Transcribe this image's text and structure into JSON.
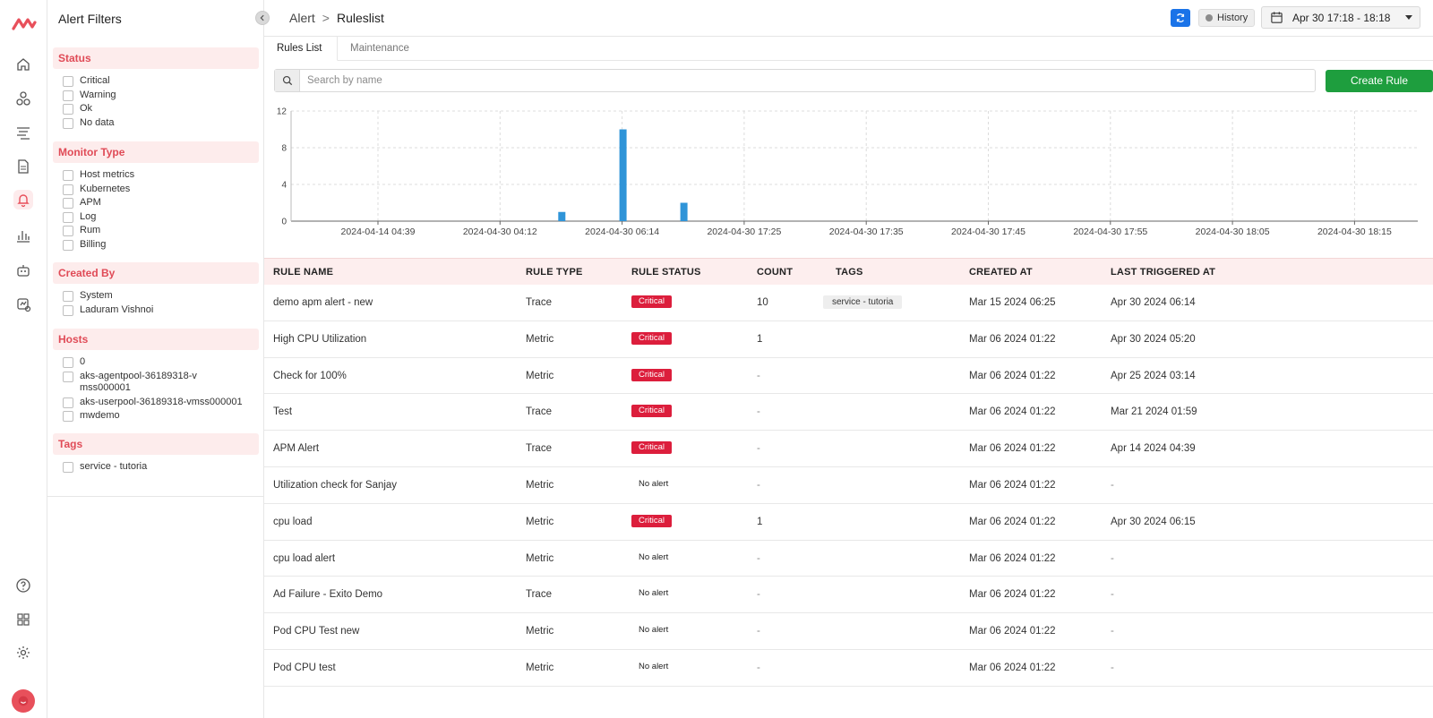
{
  "brand": {
    "accent": "#e8505b",
    "primary_blue": "#1a73e8",
    "success_green": "#1e9e3e",
    "critical_red": "#dc1e3c"
  },
  "rail": {
    "items": [
      {
        "icon": "home-icon"
      },
      {
        "icon": "infrastructure-icon"
      },
      {
        "icon": "logs-icon"
      },
      {
        "icon": "document-icon"
      },
      {
        "icon": "bell-icon",
        "active": true
      },
      {
        "icon": "bar-chart-icon"
      },
      {
        "icon": "robot-icon"
      },
      {
        "icon": "synthetics-icon"
      }
    ],
    "bottom": [
      {
        "icon": "help-icon"
      },
      {
        "icon": "apps-grid-icon"
      },
      {
        "icon": "settings-gear-icon"
      }
    ]
  },
  "filters": {
    "title": "Alert Filters",
    "groups": [
      {
        "label": "Status",
        "options": [
          "Critical",
          "Warning",
          "Ok",
          "No data"
        ]
      },
      {
        "label": "Monitor Type",
        "options": [
          "Host metrics",
          "Kubernetes",
          "APM",
          "Log",
          "Rum",
          "Billing"
        ]
      },
      {
        "label": "Created By",
        "options": [
          "System",
          "Laduram Vishnoi"
        ]
      },
      {
        "label": "Hosts",
        "options": [
          "0",
          "aks-agentpool-36189318-vmss000001",
          "aks-userpool-36189318-vmss000001",
          "mwdemo"
        ]
      },
      {
        "label": "Tags",
        "options": [
          "service - tutoria"
        ]
      }
    ]
  },
  "header": {
    "breadcrumb_root": "Alert",
    "breadcrumb_sep": ">",
    "breadcrumb_current": "Ruleslist",
    "history_label": "History",
    "date_range": "Apr 30 17:18 - 18:18"
  },
  "tabs": [
    "Rules List",
    "Maintenance"
  ],
  "search": {
    "placeholder": "Search by name"
  },
  "create_label": "Create Rule",
  "chart_data": {
    "type": "bar",
    "x_ticks": [
      "2024-04-14 04:39",
      "2024-04-30 04:12",
      "2024-04-30 06:14",
      "2024-04-30 17:25",
      "2024-04-30 17:35",
      "2024-04-30 17:45",
      "2024-04-30 17:55",
      "2024-04-30 18:05",
      "2024-04-30 18:15"
    ],
    "y_ticks": [
      0,
      4,
      8,
      12
    ],
    "ylim": [
      0,
      12
    ],
    "grid": true,
    "bar_color": "#2f94d8",
    "bars": [
      {
        "x": "between 2024-04-30 04:12 and 2024-04-30 06:14",
        "value": 1
      },
      {
        "x": "2024-04-30 06:14",
        "value": 10
      },
      {
        "x": "between 2024-04-30 06:14 and 2024-04-30 17:25",
        "value": 2
      }
    ]
  },
  "table": {
    "columns": [
      "RULE NAME",
      "RULE TYPE",
      "RULE STATUS",
      "COUNT",
      "TAGS",
      "CREATED AT",
      "LAST TRIGGERED AT"
    ],
    "rows": [
      {
        "name": "demo apm alert - new",
        "type": "Trace",
        "status": "Critical",
        "count": "10",
        "tag": "service - tutoria",
        "created": "Mar 15 2024 06:25",
        "triggered": "Apr 30 2024 06:14"
      },
      {
        "name": "High CPU Utilization",
        "type": "Metric",
        "status": "Critical",
        "count": "1",
        "tag": "",
        "created": "Mar 06 2024 01:22",
        "triggered": "Apr 30 2024 05:20"
      },
      {
        "name": "Check for 100%",
        "type": "Metric",
        "status": "Critical",
        "count": "-",
        "tag": "",
        "created": "Mar 06 2024 01:22",
        "triggered": "Apr 25 2024 03:14"
      },
      {
        "name": "Test",
        "type": "Trace",
        "status": "Critical",
        "count": "-",
        "tag": "",
        "created": "Mar 06 2024 01:22",
        "triggered": "Mar 21 2024 01:59"
      },
      {
        "name": "APM Alert",
        "type": "Trace",
        "status": "Critical",
        "count": "-",
        "tag": "",
        "created": "Mar 06 2024 01:22",
        "triggered": "Apr 14 2024 04:39"
      },
      {
        "name": "Utilization check for Sanjay",
        "type": "Metric",
        "status": "No alert",
        "count": "-",
        "tag": "",
        "created": "Mar 06 2024 01:22",
        "triggered": "-"
      },
      {
        "name": "cpu load",
        "type": "Metric",
        "status": "Critical",
        "count": "1",
        "tag": "",
        "created": "Mar 06 2024 01:22",
        "triggered": "Apr 30 2024 06:15"
      },
      {
        "name": "cpu load alert",
        "type": "Metric",
        "status": "No alert",
        "count": "-",
        "tag": "",
        "created": "Mar 06 2024 01:22",
        "triggered": "-"
      },
      {
        "name": "Ad Failure - Exito Demo",
        "type": "Trace",
        "status": "No alert",
        "count": "-",
        "tag": "",
        "created": "Mar 06 2024 01:22",
        "triggered": "-"
      },
      {
        "name": "Pod CPU Test new",
        "type": "Metric",
        "status": "No alert",
        "count": "-",
        "tag": "",
        "created": "Mar 06 2024 01:22",
        "triggered": "-"
      },
      {
        "name": "Pod CPU test",
        "type": "Metric",
        "status": "No alert",
        "count": "-",
        "tag": "",
        "created": "Mar 06 2024 01:22",
        "triggered": "-"
      }
    ]
  }
}
